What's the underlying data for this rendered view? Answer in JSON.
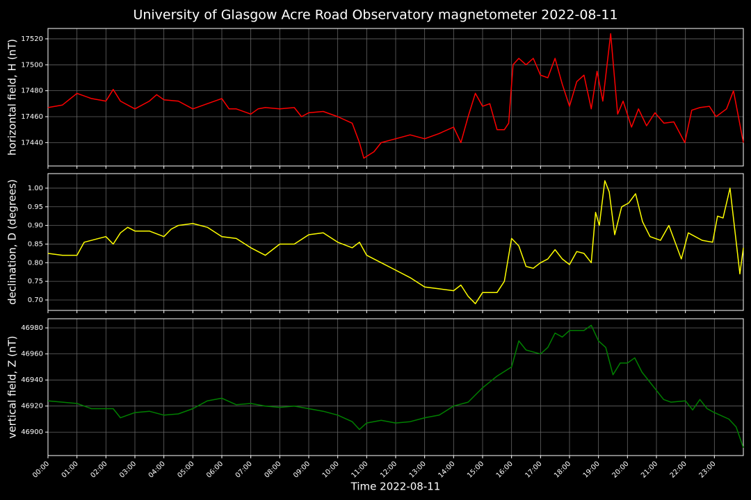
{
  "title": "University of Glasgow Acre Road Observatory magnetometer 2022-08-11",
  "chart_data": [
    {
      "type": "line",
      "ylabel": "horizontal field, H (nT)",
      "color": "#ff0000",
      "grid": true,
      "xlim": [
        0,
        24
      ],
      "ylim": [
        17422,
        17528
      ],
      "yticks": [
        17440,
        17460,
        17480,
        17500,
        17520
      ],
      "x": [
        0,
        0.5,
        1,
        1.5,
        2,
        2.25,
        2.5,
        3,
        3.5,
        3.75,
        4,
        4.5,
        5,
        5.5,
        6,
        6.25,
        6.5,
        7,
        7.25,
        7.5,
        8,
        8.5,
        8.75,
        9,
        9.5,
        10,
        10.5,
        10.75,
        10.9,
        11.25,
        11.5,
        12,
        12.5,
        13,
        13.5,
        14,
        14.25,
        14.5,
        14.75,
        15,
        15.25,
        15.5,
        15.75,
        15.9,
        16.05,
        16.25,
        16.5,
        16.75,
        17,
        17.25,
        17.5,
        17.75,
        18,
        18.25,
        18.5,
        18.75,
        18.95,
        19.15,
        19.42,
        19.66,
        19.85,
        20.14,
        20.38,
        20.66,
        20.95,
        21.26,
        21.6,
        21.98,
        22.22,
        22.5,
        22.83,
        23.06,
        23.42,
        23.66,
        24
      ],
      "values": [
        17467,
        17469,
        17478,
        17474,
        17472,
        17481,
        17472,
        17466,
        17472,
        17477,
        17473,
        17472,
        17466,
        17470,
        17474,
        17466,
        17466,
        17462,
        17466,
        17467,
        17466,
        17467,
        17460,
        17463,
        17464,
        17460,
        17455,
        17440,
        17428,
        17433,
        17440,
        17443,
        17446,
        17443,
        17447,
        17452,
        17440,
        17460,
        17478,
        17468,
        17470,
        17450,
        17450,
        17455,
        17500,
        17505,
        17500,
        17505,
        17492,
        17490,
        17505,
        17485,
        17468,
        17487,
        17492,
        17466,
        17495,
        17472,
        17524,
        17462,
        17472,
        17452,
        17466,
        17453,
        17463,
        17455,
        17456,
        17440,
        17465,
        17467,
        17468,
        17460,
        17466,
        17480,
        17440
      ]
    },
    {
      "type": "line",
      "ylabel": "declination, D (degrees)",
      "color": "#ffff00",
      "grid": true,
      "xlim": [
        0,
        24
      ],
      "ylim": [
        0.672,
        1.039
      ],
      "yticks": [
        {
          "value": 0.7,
          "label": "0.70"
        },
        0.75,
        {
          "value": 0.8,
          "label": "0.80"
        },
        0.85,
        {
          "value": 0.9,
          "label": "0.90"
        },
        0.95,
        {
          "value": 1,
          "label": "1.00"
        }
      ],
      "x": [
        0,
        0.5,
        1,
        1.25,
        2,
        2.25,
        2.5,
        2.75,
        3,
        3.5,
        4,
        4.25,
        4.5,
        5,
        5.5,
        6,
        6.5,
        7,
        7.5,
        8,
        8.5,
        9,
        9.5,
        10,
        10.5,
        10.75,
        11,
        11.5,
        12,
        12.5,
        13,
        13.5,
        14,
        14.25,
        14.5,
        14.75,
        15,
        15.5,
        15.75,
        16,
        16.25,
        16.5,
        16.75,
        17,
        17.25,
        17.5,
        17.75,
        18,
        18.25,
        18.5,
        18.75,
        18.9,
        19.03,
        19.22,
        19.37,
        19.56,
        19.8,
        20.04,
        20.28,
        20.52,
        20.78,
        21.14,
        21.43,
        21.86,
        22.1,
        22.58,
        22.94,
        23.11,
        23.3,
        23.54,
        23.88,
        24
      ],
      "values": [
        0.825,
        0.82,
        0.82,
        0.855,
        0.87,
        0.85,
        0.88,
        0.895,
        0.885,
        0.885,
        0.87,
        0.89,
        0.9,
        0.905,
        0.895,
        0.87,
        0.865,
        0.84,
        0.82,
        0.85,
        0.85,
        0.875,
        0.88,
        0.855,
        0.84,
        0.855,
        0.82,
        0.8,
        0.78,
        0.76,
        0.735,
        0.73,
        0.725,
        0.74,
        0.71,
        0.69,
        0.72,
        0.72,
        0.75,
        0.865,
        0.845,
        0.79,
        0.785,
        0.8,
        0.81,
        0.835,
        0.81,
        0.795,
        0.83,
        0.825,
        0.8,
        0.935,
        0.9,
        1.02,
        0.99,
        0.875,
        0.95,
        0.96,
        0.985,
        0.91,
        0.87,
        0.86,
        0.9,
        0.81,
        0.88,
        0.86,
        0.855,
        0.925,
        0.92,
        1.0,
        0.77,
        0.84
      ]
    },
    {
      "type": "line",
      "ylabel": "vertical field, Z (nT)",
      "xlabel": "Time 2022-08-11",
      "color": "#008000",
      "grid": true,
      "xlim": [
        0,
        24
      ],
      "ylim": [
        46882,
        46987
      ],
      "yticks": [
        46900,
        46920,
        46940,
        46960,
        46980
      ],
      "xticks": [
        {
          "value": 0,
          "label": "00:00"
        },
        {
          "value": 1,
          "label": "01:00"
        },
        {
          "value": 2,
          "label": "02:00"
        },
        {
          "value": 3,
          "label": "03:00"
        },
        {
          "value": 4,
          "label": "04:00"
        },
        {
          "value": 5,
          "label": "05:00"
        },
        {
          "value": 6,
          "label": "06:00"
        },
        {
          "value": 7,
          "label": "07:00"
        },
        {
          "value": 8,
          "label": "08:00"
        },
        {
          "value": 9,
          "label": "09:00"
        },
        {
          "value": 10,
          "label": "10:00"
        },
        {
          "value": 11,
          "label": "11:00"
        },
        {
          "value": 12,
          "label": "12:00"
        },
        {
          "value": 13,
          "label": "13:00"
        },
        {
          "value": 14,
          "label": "14:00"
        },
        {
          "value": 15,
          "label": "15:00"
        },
        {
          "value": 16,
          "label": "16:00"
        },
        {
          "value": 17,
          "label": "17:00"
        },
        {
          "value": 18,
          "label": "18:00"
        },
        {
          "value": 19,
          "label": "19:00"
        },
        {
          "value": 20,
          "label": "20:00"
        },
        {
          "value": 21,
          "label": "21:00"
        },
        {
          "value": 22,
          "label": "22:00"
        },
        {
          "value": 23,
          "label": "23:00"
        }
      ],
      "x": [
        0,
        1,
        1.5,
        2,
        2.25,
        2.5,
        3,
        3.5,
        4,
        4.5,
        5,
        5.5,
        6,
        6.5,
        7,
        7.5,
        8,
        8.5,
        9,
        9.5,
        10,
        10.5,
        10.75,
        11,
        11.5,
        12,
        12.5,
        13,
        13.5,
        14,
        14.5,
        15,
        15.5,
        16,
        16.25,
        16.5,
        17,
        17.25,
        17.5,
        17.75,
        18,
        18.5,
        18.75,
        19,
        19.25,
        19.5,
        19.75,
        20,
        20.25,
        20.5,
        21,
        21.25,
        21.5,
        22,
        22.25,
        22.5,
        22.75,
        23,
        23.5,
        23.75,
        24
      ],
      "values": [
        46924,
        46922,
        46918,
        46918,
        46918,
        46911,
        46915,
        46916,
        46913,
        46914,
        46918,
        46924,
        46926,
        46921,
        46922,
        46920,
        46919,
        46920,
        46918,
        46916,
        46913,
        46908,
        46902,
        46907,
        46909,
        46907,
        46908,
        46911,
        46913,
        46920,
        46923,
        46934,
        46943,
        46950,
        46970,
        46963,
        46960,
        46965,
        46976,
        46973,
        46978,
        46978,
        46982,
        46970,
        46965,
        46944,
        46953,
        46953,
        46957,
        46946,
        46932,
        46925,
        46923,
        46924,
        46917,
        46925,
        46918,
        46915,
        46910,
        46904,
        46888
      ]
    }
  ]
}
